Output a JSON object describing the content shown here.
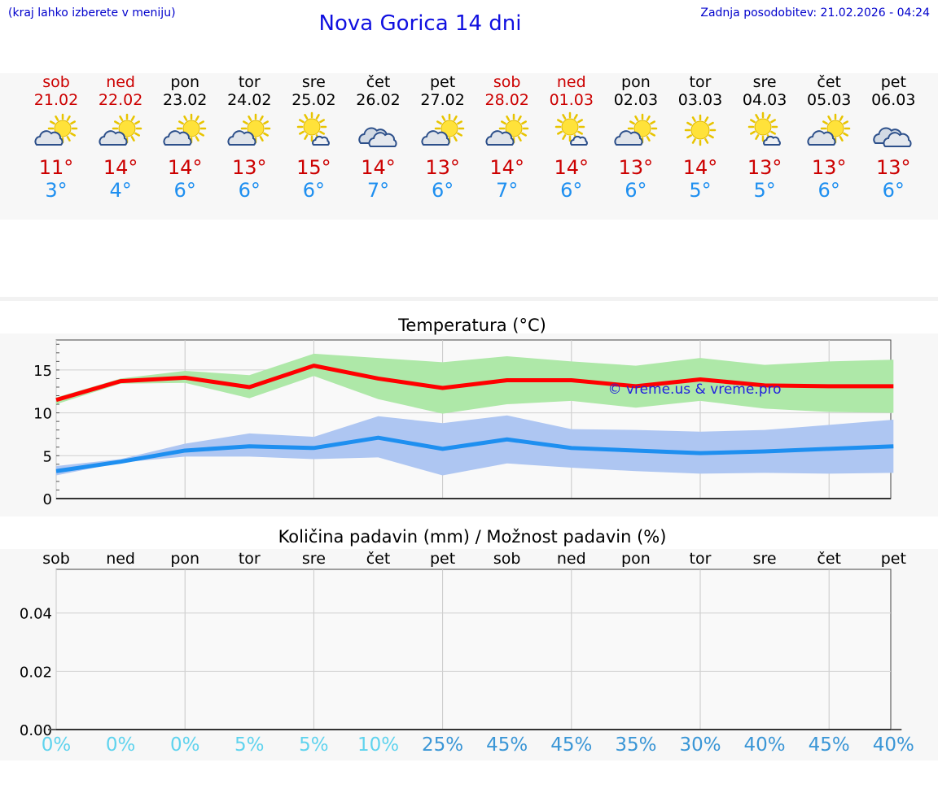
{
  "header": {
    "hint": "(kraj lahko izberete v meniju)",
    "title": "Nova Gorica 14 dni",
    "updated": "Zadnja posodobitev: 21.02.2026 - 04:24"
  },
  "days": [
    {
      "name": "sob",
      "date": "21.02",
      "weekend": true,
      "icon": "partly-cloudy",
      "max": "11°",
      "min": "3°"
    },
    {
      "name": "ned",
      "date": "22.02",
      "weekend": true,
      "icon": "partly-cloudy",
      "max": "14°",
      "min": "4°"
    },
    {
      "name": "pon",
      "date": "23.02",
      "weekend": false,
      "icon": "partly-cloudy",
      "max": "14°",
      "min": "6°"
    },
    {
      "name": "tor",
      "date": "24.02",
      "weekend": false,
      "icon": "partly-cloudy",
      "max": "13°",
      "min": "6°"
    },
    {
      "name": "sre",
      "date": "25.02",
      "weekend": false,
      "icon": "sun-small-cloud",
      "max": "15°",
      "min": "6°"
    },
    {
      "name": "čet",
      "date": "26.02",
      "weekend": false,
      "icon": "cloudy",
      "max": "14°",
      "min": "7°"
    },
    {
      "name": "pet",
      "date": "27.02",
      "weekend": false,
      "icon": "partly-cloudy",
      "max": "13°",
      "min": "6°"
    },
    {
      "name": "sob",
      "date": "28.02",
      "weekend": true,
      "icon": "partly-cloudy",
      "max": "14°",
      "min": "7°"
    },
    {
      "name": "ned",
      "date": "01.03",
      "weekend": true,
      "icon": "sun-small-cloud",
      "max": "14°",
      "min": "6°"
    },
    {
      "name": "pon",
      "date": "02.03",
      "weekend": false,
      "icon": "partly-cloudy",
      "max": "13°",
      "min": "6°"
    },
    {
      "name": "tor",
      "date": "03.03",
      "weekend": false,
      "icon": "sunny",
      "max": "14°",
      "min": "5°"
    },
    {
      "name": "sre",
      "date": "04.03",
      "weekend": false,
      "icon": "sun-small-cloud",
      "max": "13°",
      "min": "5°"
    },
    {
      "name": "čet",
      "date": "05.03",
      "weekend": false,
      "icon": "partly-cloudy",
      "max": "13°",
      "min": "6°"
    },
    {
      "name": "pet",
      "date": "06.03",
      "weekend": false,
      "icon": "cloudy",
      "max": "13°",
      "min": "6°"
    }
  ],
  "colors": {
    "max_line": "#ff0000",
    "max_band": "#aee8a8",
    "min_line": "#1e8ff0",
    "min_band": "#aec6f2",
    "weekend": "#cc0000",
    "pct_low": "#5fd3ee",
    "pct_high": "#3a96d6"
  },
  "chart_data": [
    {
      "type": "line",
      "title": "Temperatura (°C)",
      "watermark": "© vreme.us & vreme.pro",
      "ylim": [
        0,
        18.5
      ],
      "yticks": [
        0,
        5,
        10,
        15
      ],
      "x": [
        0,
        1,
        2,
        3,
        4,
        5,
        6,
        7,
        8,
        9,
        10,
        11,
        12,
        13
      ],
      "series": [
        {
          "name": "max",
          "values": [
            11.5,
            13.7,
            14.1,
            13.0,
            15.5,
            14.0,
            12.9,
            13.8,
            13.8,
            13.1,
            13.9,
            13.2,
            13.1,
            13.1
          ],
          "band_low": [
            11.0,
            13.4,
            13.5,
            11.7,
            14.3,
            11.6,
            9.9,
            11.0,
            11.4,
            10.6,
            11.4,
            10.5,
            10.1,
            10.0
          ],
          "band_high": [
            11.8,
            14.0,
            14.9,
            14.4,
            16.9,
            16.4,
            15.9,
            16.6,
            16.0,
            15.5,
            16.4,
            15.6,
            16.0,
            16.2
          ]
        },
        {
          "name": "min",
          "values": [
            3.2,
            4.3,
            5.6,
            6.1,
            5.9,
            7.1,
            5.8,
            6.9,
            5.9,
            5.6,
            5.3,
            5.5,
            5.8,
            6.1
          ],
          "band_low": [
            2.7,
            4.2,
            4.9,
            4.9,
            4.6,
            4.8,
            2.7,
            4.1,
            3.6,
            3.2,
            2.9,
            3.0,
            2.9,
            3.0
          ],
          "band_high": [
            3.8,
            4.6,
            6.4,
            7.6,
            7.2,
            9.6,
            8.8,
            9.7,
            8.1,
            8.0,
            7.8,
            8.0,
            8.6,
            9.2
          ]
        }
      ]
    },
    {
      "type": "bar",
      "title": "Količina padavin (mm) / Možnost padavin (%)",
      "categories": [
        "sob",
        "ned",
        "pon",
        "tor",
        "sre",
        "čet",
        "pet",
        "sob",
        "ned",
        "pon",
        "tor",
        "sre",
        "čet",
        "pet"
      ],
      "values": [
        0,
        0,
        0,
        0,
        0,
        0,
        0,
        0,
        0,
        0,
        0,
        0,
        0,
        0
      ],
      "ylim": [
        0,
        0.055
      ],
      "yticks": [
        "0.00",
        "0.02",
        "0.04"
      ],
      "ytick_values": [
        0,
        0.02,
        0.04
      ],
      "probability": [
        "0%",
        "0%",
        "0%",
        "5%",
        "5%",
        "10%",
        "25%",
        "45%",
        "45%",
        "35%",
        "30%",
        "40%",
        "45%",
        "40%"
      ]
    }
  ]
}
